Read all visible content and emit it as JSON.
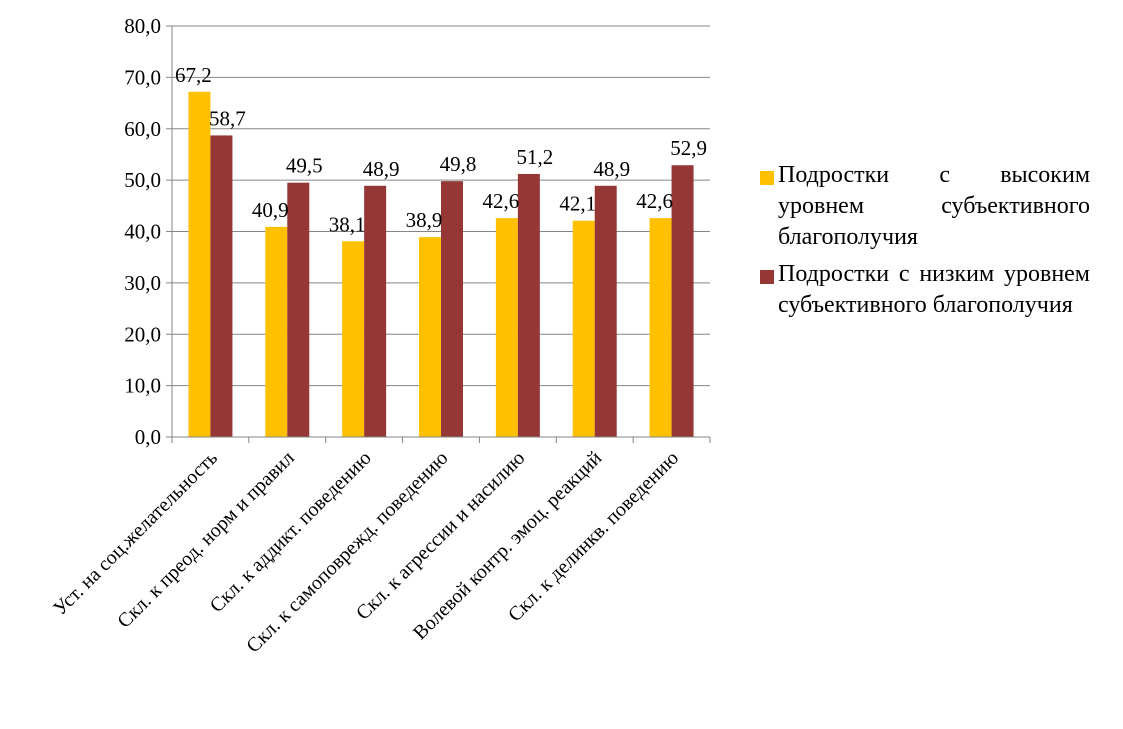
{
  "chart_data": {
    "type": "bar",
    "categories": [
      "Уст. на соц.желательность",
      "Скл. к преод. норм и правил",
      "Скл. к аддикт. поведению",
      "Скл. к самоповрежд. поведению",
      "Скл. к агрессии и насилию",
      "Волевой контр. эмоц. реакций",
      "Скл. к делинкв. поведению"
    ],
    "series": [
      {
        "name": "Подростки с высоким уровнем субъективного благополучия",
        "color": "#FFC000",
        "values": [
          67.2,
          40.9,
          38.1,
          38.9,
          42.6,
          42.1,
          42.6
        ],
        "labels": [
          "67,2",
          "40,9",
          "38,1",
          "38,9",
          "42,6",
          "42,1",
          "42,6"
        ]
      },
      {
        "name": "Подростки с низким уровнем субъективного благополучия",
        "color": "#953735",
        "values": [
          58.7,
          49.5,
          48.9,
          49.8,
          51.2,
          48.9,
          52.9
        ],
        "labels": [
          "58,7",
          "49,5",
          "48,9",
          "49,8",
          "51,2",
          "48,9",
          "52,9"
        ]
      }
    ],
    "ylim": [
      0,
      80
    ],
    "yticks": [
      0,
      10,
      20,
      30,
      40,
      50,
      60,
      70,
      80
    ],
    "ytick_labels": [
      "0,0",
      "10,0",
      "20,0",
      "30,0",
      "40,0",
      "50,0",
      "60,0",
      "70,0",
      "80,0"
    ],
    "grid": true,
    "legend_position": "right",
    "title": "",
    "xlabel": "",
    "ylabel": ""
  }
}
